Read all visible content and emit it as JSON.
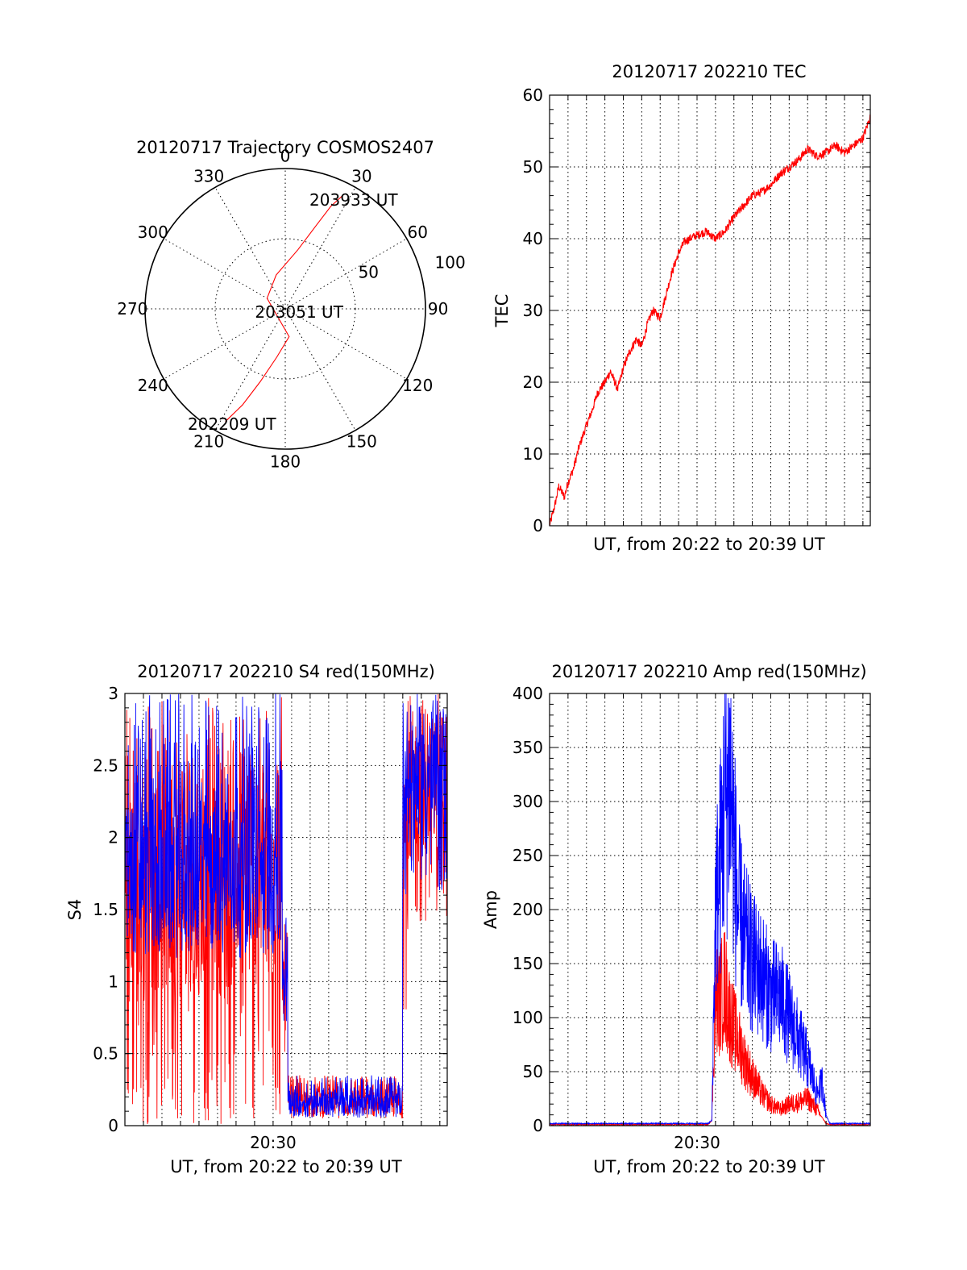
{
  "chart_data": [
    {
      "id": "polar",
      "type": "scatter",
      "projection": "polar",
      "title": "20120717 Trajectory COSMOS2407",
      "angle_labels": [
        "0",
        "30",
        "60",
        "90",
        "120",
        "150",
        "180",
        "210",
        "240",
        "270",
        "300",
        "330"
      ],
      "radial_labels": [
        "50",
        "100"
      ],
      "rlim": [
        0,
        100
      ],
      "series": [
        {
          "color": "#ff0000",
          "points": [
            {
              "az": 208,
              "r": 91
            },
            {
              "az": 204,
              "r": 75
            },
            {
              "az": 199,
              "r": 55
            },
            {
              "az": 190,
              "r": 35
            },
            {
              "az": 172,
              "r": 20
            },
            {
              "az": 300,
              "r": 15
            },
            {
              "az": 345,
              "r": 25
            },
            {
              "az": 12,
              "r": 43
            },
            {
              "az": 20,
              "r": 62
            },
            {
              "az": 24,
              "r": 80
            },
            {
              "az": 27,
              "r": 91
            }
          ]
        }
      ],
      "annotations": [
        {
          "text": "203933 UT",
          "az": 32,
          "r": 92
        },
        {
          "text": "203051 UT",
          "az": 100,
          "r": 10
        },
        {
          "text": "202209 UT",
          "az": 205,
          "r": 90
        }
      ]
    },
    {
      "id": "tec",
      "type": "line",
      "title": "20120717 202210 TEC",
      "xlabel": "UT, from 20:22 to 20:39 UT",
      "ylabel": "TEC",
      "xlim": [
        0,
        17.4
      ],
      "ylim": [
        0,
        60
      ],
      "yticks": [
        "0",
        "10",
        "20",
        "30",
        "40",
        "50",
        "60"
      ],
      "grid": true,
      "series": [
        {
          "color": "#ff0000",
          "x": [
            0,
            0.3,
            0.5,
            0.8,
            1.0,
            1.3,
            1.6,
            2.0,
            2.3,
            2.6,
            3.0,
            3.3,
            3.7,
            4.0,
            4.3,
            4.7,
            5.0,
            5.3,
            5.6,
            6.0,
            6.3,
            6.6,
            7.0,
            7.3,
            7.6,
            8.0,
            8.5,
            9.0,
            9.5,
            10.0,
            10.5,
            11.0,
            11.5,
            12.0,
            12.5,
            13.0,
            13.5,
            14.0,
            14.5,
            15.0,
            15.5,
            16.0,
            16.5,
            17.0,
            17.4
          ],
          "y": [
            0,
            3,
            5.5,
            4,
            6,
            8,
            11,
            14,
            16,
            18.5,
            20,
            21.5,
            19,
            22,
            24,
            26,
            25,
            28,
            30,
            29,
            32,
            35,
            38,
            39.5,
            40,
            40.5,
            41,
            40,
            41,
            43,
            44.5,
            46,
            46.5,
            47.5,
            49,
            50,
            51,
            52.5,
            51.5,
            52,
            53,
            52,
            53,
            54,
            57
          ]
        }
      ]
    },
    {
      "id": "s4",
      "type": "line",
      "title": "20120717 202210 S4 red(150MHz)",
      "xlabel": "UT, from 20:22 to 20:39 UT",
      "ylabel": "S4",
      "xlim": [
        0,
        17.4
      ],
      "ylim": [
        0,
        3
      ],
      "yticks": [
        "0",
        "0.5",
        "1",
        "1.5",
        "2",
        "2.5",
        "3"
      ],
      "xticks": [
        {
          "value": 8,
          "label": "20:30"
        }
      ],
      "grid": true,
      "series": [
        {
          "color": "#ff0000",
          "segments": [
            {
              "x_from": 0,
              "x_to": 8.5,
              "range": [
                0,
                3
              ],
              "center": 1.8
            },
            {
              "x_from": 8.5,
              "x_to": 8.8,
              "range": [
                0.5,
                1.4
              ],
              "center": 1.0
            },
            {
              "x_from": 8.8,
              "x_to": 15.0,
              "range": [
                0.05,
                0.35
              ],
              "center": 0.15
            },
            {
              "x_from": 15.0,
              "x_to": 15.5,
              "range": [
                0.8,
                3
              ],
              "center": 2.0
            },
            {
              "x_from": 15.5,
              "x_to": 17.4,
              "range": [
                1.4,
                3
              ],
              "center": 2.4
            }
          ]
        },
        {
          "color": "#0000ff",
          "segments": [
            {
              "x_from": 0,
              "x_to": 8.5,
              "range": [
                1.2,
                3
              ],
              "center": 1.7
            },
            {
              "x_from": 8.5,
              "x_to": 8.8,
              "range": [
                0.6,
                1.5
              ],
              "center": 1.1
            },
            {
              "x_from": 8.8,
              "x_to": 15.0,
              "range": [
                0.07,
                0.35
              ],
              "center": 0.14
            },
            {
              "x_from": 15.0,
              "x_to": 17.4,
              "range": [
                1.6,
                3
              ],
              "center": 2.5
            }
          ]
        }
      ]
    },
    {
      "id": "amp",
      "type": "line",
      "title": "20120717 202210 Amp red(150MHz)",
      "xlabel": "UT, from 20:22 to 20:39 UT",
      "ylabel": "Amp",
      "xlim": [
        0,
        17.4
      ],
      "ylim": [
        0,
        400
      ],
      "yticks": [
        "0",
        "50",
        "100",
        "150",
        "200",
        "250",
        "300",
        "350",
        "400"
      ],
      "xticks": [
        {
          "value": 8,
          "label": "20:30"
        }
      ],
      "grid": true,
      "series": [
        {
          "color": "#ff0000",
          "x": [
            0,
            8.6,
            8.8,
            9.0,
            9.2,
            9.5,
            9.8,
            10.2,
            10.6,
            11.0,
            11.5,
            12.0,
            12.5,
            13.0,
            13.5,
            14.0,
            14.5,
            15.0,
            15.2,
            17.4
          ],
          "y": [
            1,
            1,
            5,
            120,
            115,
            130,
            100,
            80,
            60,
            45,
            30,
            20,
            15,
            20,
            22,
            25,
            15,
            2,
            1,
            1
          ]
        },
        {
          "color": "#0000ff",
          "x": [
            0,
            8.6,
            8.8,
            9.0,
            9.2,
            9.5,
            9.8,
            10.0,
            10.2,
            10.6,
            11.0,
            11.5,
            12.0,
            12.5,
            13.0,
            13.5,
            14.0,
            14.5,
            14.8,
            15.0,
            15.2,
            17.4
          ],
          "y": [
            2,
            2,
            5,
            200,
            230,
            300,
            320,
            260,
            200,
            170,
            150,
            140,
            120,
            120,
            100,
            80,
            60,
            30,
            40,
            10,
            2,
            2
          ]
        }
      ]
    }
  ]
}
